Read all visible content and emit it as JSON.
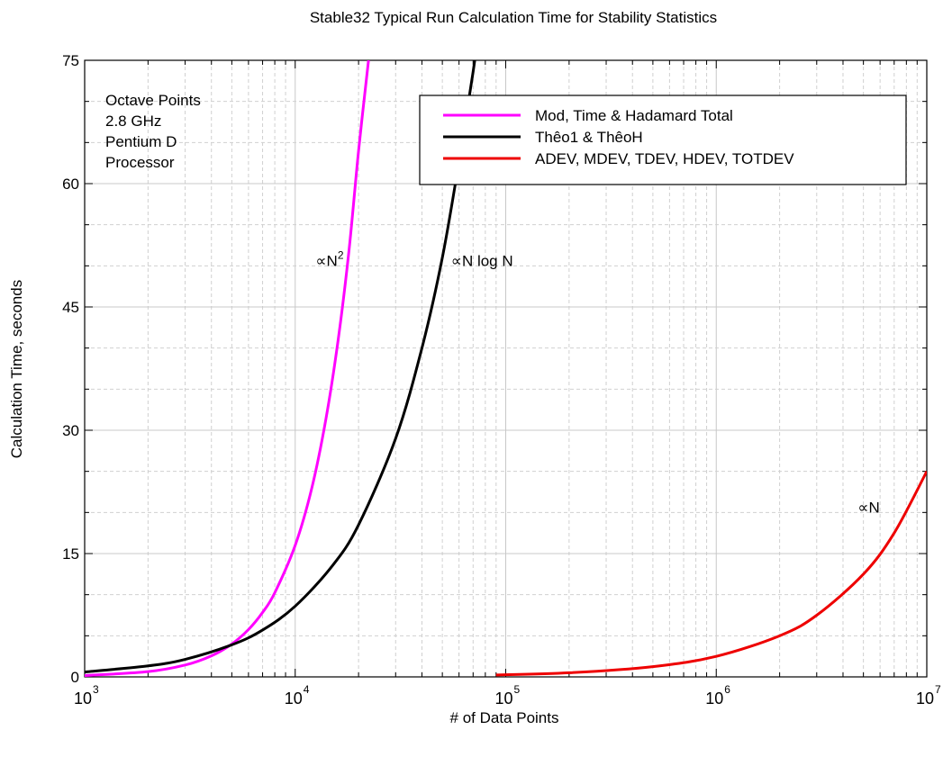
{
  "chart_data": {
    "type": "line",
    "title": "Stable32 Typical Run Calculation Time for Stability Statistics",
    "xlabel": "# of Data Points",
    "ylabel": "Calculation Time, seconds",
    "x_scale": "log",
    "xlim": [
      1000,
      10000000
    ],
    "ylim": [
      0,
      75
    ],
    "x_ticks": [
      {
        "base": "10",
        "exp": "3",
        "value": 1000
      },
      {
        "base": "10",
        "exp": "4",
        "value": 10000
      },
      {
        "base": "10",
        "exp": "5",
        "value": 100000
      },
      {
        "base": "10",
        "exp": "6",
        "value": 1000000
      },
      {
        "base": "10",
        "exp": "7",
        "value": 10000000
      }
    ],
    "y_ticks": [
      "0",
      "15",
      "30",
      "45",
      "60",
      "75"
    ],
    "grid": true,
    "legend_position": "top-right",
    "info_lines": [
      "Octave Points",
      "2.8 GHz",
      "Pentium D",
      "Processor"
    ],
    "annotations": [
      {
        "text": "∝N",
        "sup": "2",
        "x": 12500,
        "y": 50
      },
      {
        "text": "∝N log N",
        "sup": "",
        "x": 55000,
        "y": 50
      },
      {
        "text": "∝N",
        "sup": "",
        "x": 4700000,
        "y": 20
      }
    ],
    "series": [
      {
        "name": "Mod, Time & Hadamard Total",
        "color": "#ff00ff",
        "x": [
          1000,
          2000,
          3000,
          4000,
          5000,
          6000,
          7000,
          8000,
          10000,
          12000,
          14000,
          16000,
          18000,
          20000,
          22300
        ],
        "y": [
          0.16,
          0.64,
          1.44,
          2.56,
          4.0,
          5.76,
          7.84,
          10.24,
          16.0,
          23.0,
          31.4,
          41.0,
          51.8,
          64.0,
          75.0
        ]
      },
      {
        "name": "Thêo1 & ThêoH",
        "color": "#000000",
        "x": [
          1000,
          2000,
          3000,
          5000,
          7000,
          10000,
          15000,
          20000,
          30000,
          40000,
          50000,
          60000,
          70000,
          75000
        ],
        "y": [
          0.6,
          1.34,
          2.13,
          3.9,
          5.7,
          8.6,
          13.5,
          18.5,
          29.0,
          40.0,
          51.0,
          62.7,
          73.6,
          79.5
        ]
      },
      {
        "name": "ADEV, MDEV, TDEV, HDEV, TOTDEV",
        "color": "#ee0000",
        "x": [
          90000,
          200000,
          500000,
          1000000,
          2000000,
          3000000,
          5000000,
          7000000,
          10000000
        ],
        "y": [
          0.23,
          0.5,
          1.25,
          2.5,
          5.0,
          7.5,
          12.5,
          17.5,
          25.0
        ]
      }
    ]
  }
}
